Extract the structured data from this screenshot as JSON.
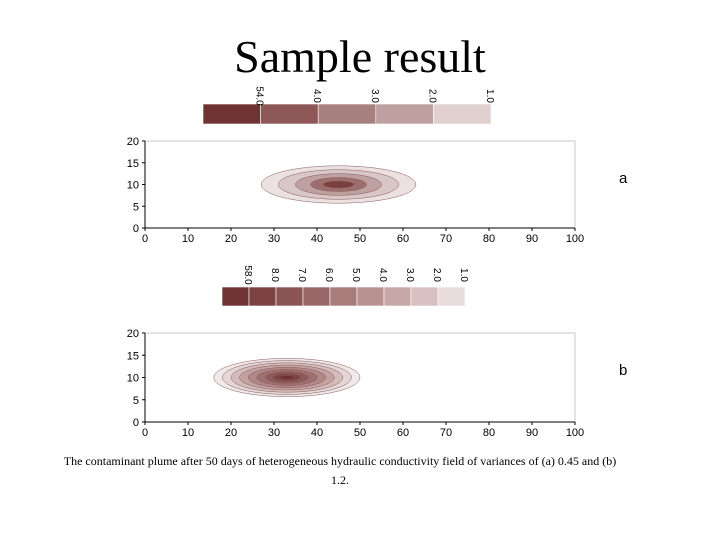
{
  "slide": {
    "title": "Sample result",
    "caption": "The contaminant plume after 50 days of heterogeneous hydraulic conductivity field of variances of (a) 0.45 and (b) 1.2."
  },
  "chart_data": [
    {
      "type": "contour",
      "panel_label": "a",
      "colorbar": {
        "levels": [
          "54.0",
          "4.0",
          "3.0",
          "2.0",
          "1.0"
        ],
        "colors": [
          "#6f3333",
          "#8e5858",
          "#a88080",
          "#bea0a0",
          "#dfcfcf"
        ]
      },
      "x_ticks": [
        0,
        10,
        20,
        30,
        40,
        50,
        60,
        70,
        80,
        90,
        100
      ],
      "y_ticks": [
        0,
        5,
        10,
        15,
        20
      ],
      "xlim": [
        0,
        100
      ],
      "ylim": [
        0,
        20
      ],
      "plume": {
        "center": [
          45,
          10
        ],
        "contours": [
          {
            "level": "1.0",
            "rx": 18,
            "ry": 4.3,
            "color": "#ebe1e1"
          },
          {
            "level": "2.0",
            "rx": 14,
            "ry": 3.4,
            "color": "#d9c7c7"
          },
          {
            "level": "3.0",
            "rx": 10,
            "ry": 2.5,
            "color": "#bea0a0"
          },
          {
            "level": "4.0",
            "rx": 6.5,
            "ry": 1.6,
            "color": "#9c6e6e"
          },
          {
            "level": "54.0",
            "rx": 3.5,
            "ry": 0.8,
            "color": "#7a3f3f"
          }
        ]
      }
    },
    {
      "type": "contour",
      "panel_label": "b",
      "colorbar": {
        "levels": [
          "58.0",
          "8.0",
          "7.0",
          "6.0",
          "5.0",
          "4.0",
          "3.0",
          "2.0",
          "1.0"
        ],
        "colors": [
          "#6f3333",
          "#7d4242",
          "#8c5555",
          "#9a6868",
          "#a97c7c",
          "#b89191",
          "#c8a7a7",
          "#d8c0c0",
          "#e8dcdc"
        ]
      },
      "x_ticks": [
        0,
        10,
        20,
        30,
        40,
        50,
        60,
        70,
        80,
        90,
        100
      ],
      "y_ticks": [
        0,
        5,
        10,
        15,
        20
      ],
      "xlim": [
        0,
        100
      ],
      "ylim": [
        0,
        20
      ],
      "plume": {
        "center": [
          33,
          10
        ],
        "contours": [
          {
            "level": "1.0",
            "rx": 17,
            "ry": 4.3,
            "color": "#f0e9e9"
          },
          {
            "level": "2.0",
            "rx": 15,
            "ry": 3.8,
            "color": "#e4d6d6"
          },
          {
            "level": "3.0",
            "rx": 13,
            "ry": 3.3,
            "color": "#d4bcbc"
          },
          {
            "level": "4.0",
            "rx": 11,
            "ry": 2.8,
            "color": "#c3a2a2"
          },
          {
            "level": "5.0",
            "rx": 9,
            "ry": 2.3,
            "color": "#b18888"
          },
          {
            "level": "6.0",
            "rx": 7,
            "ry": 1.8,
            "color": "#9f7070"
          },
          {
            "level": "7.0",
            "rx": 5,
            "ry": 1.3,
            "color": "#8d5a5a"
          },
          {
            "level": "8.0",
            "rx": 3.2,
            "ry": 0.85,
            "color": "#7c4545"
          },
          {
            "level": "58.0",
            "rx": 1.8,
            "ry": 0.45,
            "color": "#6f3333"
          }
        ]
      }
    }
  ]
}
